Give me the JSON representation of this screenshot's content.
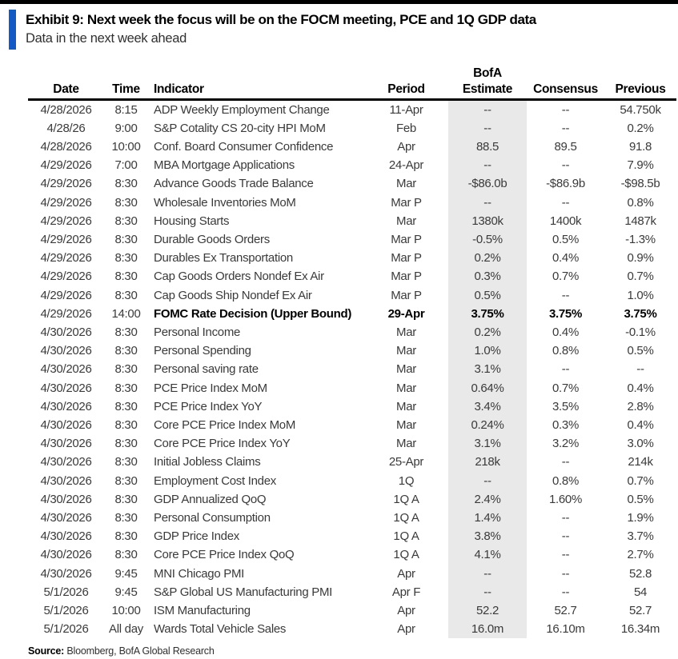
{
  "exhibit": {
    "title": "Exhibit 9: Next week the focus will be on the FOCM meeting, PCE and 1Q GDP data",
    "subtitle": "Data in the next week ahead",
    "accent_color": "#1459c4",
    "estimate_shade_color": "#e9e9e9"
  },
  "table": {
    "headers": {
      "bofa_overline": "BofA",
      "date": "Date",
      "time": "Time",
      "indicator": "Indicator",
      "period": "Period",
      "estimate": "Estimate",
      "consensus": "Consensus",
      "previous": "Previous"
    },
    "rows": [
      {
        "date": "4/28/2026",
        "time": "8:15",
        "indicator": "ADP Weekly Employment Change",
        "period": "11-Apr",
        "estimate": "--",
        "consensus": "--",
        "previous": "54.750k",
        "bold": false
      },
      {
        "date": "4/28/26",
        "time": "9:00",
        "indicator": "S&P Cotality CS 20-city HPI MoM",
        "period": "Feb",
        "estimate": "--",
        "consensus": "--",
        "previous": "0.2%",
        "bold": false
      },
      {
        "date": "4/28/2026",
        "time": "10:00",
        "indicator": "Conf. Board Consumer Confidence",
        "period": "Apr",
        "estimate": "88.5",
        "consensus": "89.5",
        "previous": "91.8",
        "bold": false
      },
      {
        "date": "4/29/2026",
        "time": "7:00",
        "indicator": "MBA Mortgage Applications",
        "period": "24-Apr",
        "estimate": "--",
        "consensus": "--",
        "previous": "7.9%",
        "bold": false
      },
      {
        "date": "4/29/2026",
        "time": "8:30",
        "indicator": "Advance Goods Trade Balance",
        "period": "Mar",
        "estimate": "-$86.0b",
        "consensus": "-$86.9b",
        "previous": "-$98.5b",
        "bold": false
      },
      {
        "date": "4/29/2026",
        "time": "8:30",
        "indicator": "Wholesale Inventories MoM",
        "period": "Mar P",
        "estimate": "--",
        "consensus": "--",
        "previous": "0.8%",
        "bold": false
      },
      {
        "date": "4/29/2026",
        "time": "8:30",
        "indicator": "Housing Starts",
        "period": "Mar",
        "estimate": "1380k",
        "consensus": "1400k",
        "previous": "1487k",
        "bold": false
      },
      {
        "date": "4/29/2026",
        "time": "8:30",
        "indicator": "Durable Goods Orders",
        "period": "Mar P",
        "estimate": "-0.5%",
        "consensus": "0.5%",
        "previous": "-1.3%",
        "bold": false
      },
      {
        "date": "4/29/2026",
        "time": "8:30",
        "indicator": "Durables Ex Transportation",
        "period": "Mar P",
        "estimate": "0.2%",
        "consensus": "0.4%",
        "previous": "0.9%",
        "bold": false
      },
      {
        "date": "4/29/2026",
        "time": "8:30",
        "indicator": "Cap Goods Orders Nondef Ex Air",
        "period": "Mar P",
        "estimate": "0.3%",
        "consensus": "0.7%",
        "previous": "0.7%",
        "bold": false
      },
      {
        "date": "4/29/2026",
        "time": "8:30",
        "indicator": "Cap Goods Ship Nondef Ex Air",
        "period": "Mar P",
        "estimate": "0.5%",
        "consensus": "--",
        "previous": "1.0%",
        "bold": false
      },
      {
        "date": "4/29/2026",
        "time": "14:00",
        "indicator": "FOMC Rate Decision (Upper Bound)",
        "period": "29-Apr",
        "estimate": "3.75%",
        "consensus": "3.75%",
        "previous": "3.75%",
        "bold": true
      },
      {
        "date": "4/30/2026",
        "time": "8:30",
        "indicator": "Personal Income",
        "period": "Mar",
        "estimate": "0.2%",
        "consensus": "0.4%",
        "previous": "-0.1%",
        "bold": false
      },
      {
        "date": "4/30/2026",
        "time": "8:30",
        "indicator": "Personal Spending",
        "period": "Mar",
        "estimate": "1.0%",
        "consensus": "0.8%",
        "previous": "0.5%",
        "bold": false
      },
      {
        "date": "4/30/2026",
        "time": "8:30",
        "indicator": "Personal saving rate",
        "period": "Mar",
        "estimate": "3.1%",
        "consensus": "--",
        "previous": "--",
        "bold": false
      },
      {
        "date": "4/30/2026",
        "time": "8:30",
        "indicator": "PCE Price Index MoM",
        "period": "Mar",
        "estimate": "0.64%",
        "consensus": "0.7%",
        "previous": "0.4%",
        "bold": false
      },
      {
        "date": "4/30/2026",
        "time": "8:30",
        "indicator": "PCE Price Index YoY",
        "period": "Mar",
        "estimate": "3.4%",
        "consensus": "3.5%",
        "previous": "2.8%",
        "bold": false
      },
      {
        "date": "4/30/2026",
        "time": "8:30",
        "indicator": "Core PCE Price Index MoM",
        "period": "Mar",
        "estimate": "0.24%",
        "consensus": "0.3%",
        "previous": "0.4%",
        "bold": false
      },
      {
        "date": "4/30/2026",
        "time": "8:30",
        "indicator": "Core PCE Price Index YoY",
        "period": "Mar",
        "estimate": "3.1%",
        "consensus": "3.2%",
        "previous": "3.0%",
        "bold": false
      },
      {
        "date": "4/30/2026",
        "time": "8:30",
        "indicator": "Initial Jobless Claims",
        "period": "25-Apr",
        "estimate": "218k",
        "consensus": "--",
        "previous": "214k",
        "bold": false
      },
      {
        "date": "4/30/2026",
        "time": "8:30",
        "indicator": "Employment Cost Index",
        "period": "1Q",
        "estimate": "--",
        "consensus": "0.8%",
        "previous": "0.7%",
        "bold": false
      },
      {
        "date": "4/30/2026",
        "time": "8:30",
        "indicator": "GDP Annualized QoQ",
        "period": "1Q A",
        "estimate": "2.4%",
        "consensus": "1.60%",
        "previous": "0.5%",
        "bold": false
      },
      {
        "date": "4/30/2026",
        "time": "8:30",
        "indicator": "Personal Consumption",
        "period": "1Q A",
        "estimate": "1.4%",
        "consensus": "--",
        "previous": "1.9%",
        "bold": false
      },
      {
        "date": "4/30/2026",
        "time": "8:30",
        "indicator": "GDP Price Index",
        "period": "1Q A",
        "estimate": "3.8%",
        "consensus": "--",
        "previous": "3.7%",
        "bold": false
      },
      {
        "date": "4/30/2026",
        "time": "8:30",
        "indicator": "Core PCE Price Index QoQ",
        "period": "1Q A",
        "estimate": "4.1%",
        "consensus": "--",
        "previous": "2.7%",
        "bold": false
      },
      {
        "date": "4/30/2026",
        "time": "9:45",
        "indicator": "MNI Chicago PMI",
        "period": "Apr",
        "estimate": "--",
        "consensus": "--",
        "previous": "52.8",
        "bold": false
      },
      {
        "date": "5/1/2026",
        "time": "9:45",
        "indicator": "S&P Global US Manufacturing PMI",
        "period": "Apr F",
        "estimate": "--",
        "consensus": "--",
        "previous": "54",
        "bold": false
      },
      {
        "date": "5/1/2026",
        "time": "10:00",
        "indicator": "ISM Manufacturing",
        "period": "Apr",
        "estimate": "52.2",
        "consensus": "52.7",
        "previous": "52.7",
        "bold": false
      },
      {
        "date": "5/1/2026",
        "time": "All day",
        "indicator": "Wards Total Vehicle Sales",
        "period": "Apr",
        "estimate": "16.0m",
        "consensus": "16.10m",
        "previous": "16.34m",
        "bold": false
      }
    ]
  },
  "source": {
    "label": "Source:",
    "text": " Bloomberg, BofA Global Research"
  }
}
